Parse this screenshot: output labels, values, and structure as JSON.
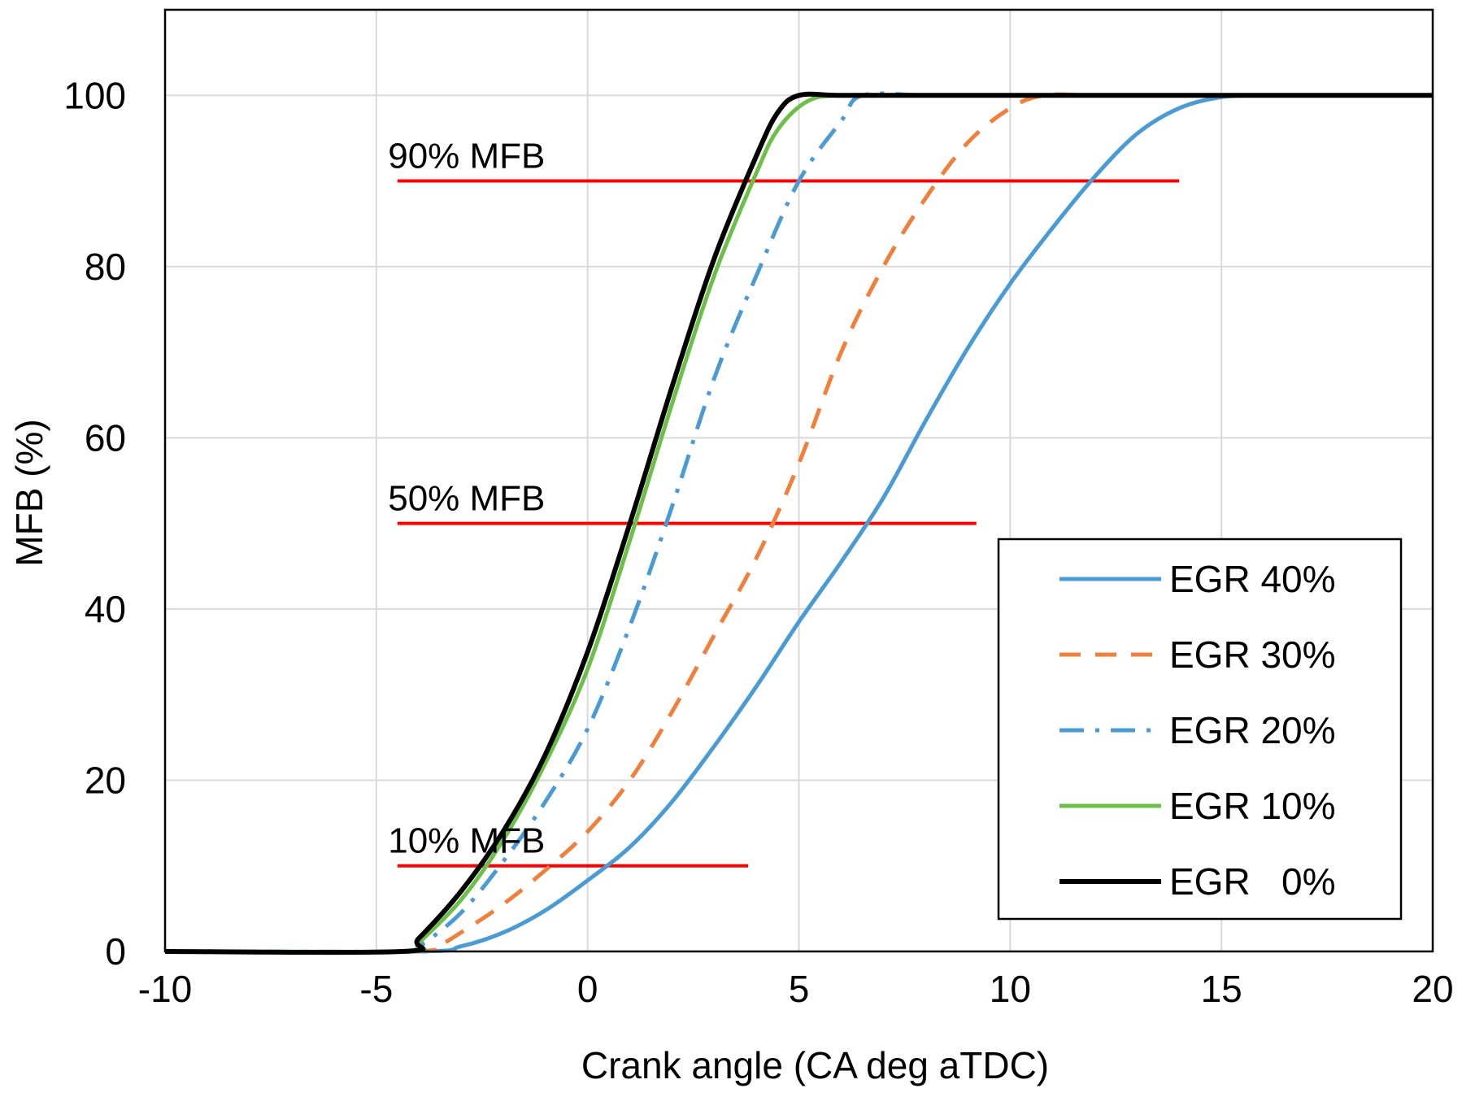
{
  "chart_data": {
    "type": "line",
    "title": "",
    "xlabel": "Crank angle  (CA deg aTDC)",
    "ylabel": "MFB  (%)",
    "xlim": [
      -10,
      20
    ],
    "ylim": [
      0,
      110
    ],
    "xticks": [
      -10,
      -5,
      0,
      5,
      10,
      15,
      20
    ],
    "yticks": [
      0,
      20,
      40,
      60,
      80,
      100
    ],
    "grid": true,
    "legend_position": "bottom-right",
    "series": [
      {
        "name": "EGR 40%",
        "color": "#4a9bd4",
        "dash": "solid",
        "x": [
          -10,
          -4,
          -3,
          -2,
          -1,
          0,
          1,
          2,
          3,
          4,
          5,
          6,
          7,
          8,
          9,
          10,
          11,
          12,
          13,
          14,
          15,
          16,
          17,
          18,
          19,
          20
        ],
        "y": [
          0,
          0,
          0.6,
          2.2,
          4.8,
          8.3,
          12.2,
          17.5,
          24,
          31,
          38.5,
          45.5,
          53,
          62,
          70.5,
          78,
          84.5,
          90.5,
          95.5,
          98.5,
          99.8,
          100,
          100,
          100,
          100,
          100
        ]
      },
      {
        "name": "EGR 30%",
        "color": "#f07f3c",
        "dash": "dashed",
        "x": [
          -10,
          -4.2,
          -3.5,
          -3,
          -2,
          -1,
          0,
          1,
          2,
          3,
          4,
          5,
          6,
          7,
          8,
          9,
          10,
          10.8,
          12,
          14,
          16,
          18,
          20
        ],
        "y": [
          0,
          0,
          0.8,
          2.2,
          5.5,
          9.5,
          14,
          20,
          28,
          37,
          46,
          57,
          70,
          80,
          88,
          94.5,
          98.5,
          100,
          100,
          100,
          100,
          100,
          100
        ]
      },
      {
        "name": "EGR 20%",
        "color": "#4a9bd4",
        "dash": "dashdot",
        "x": [
          -10,
          -4.3,
          -4,
          -3,
          -2,
          -1,
          0,
          1,
          2,
          3,
          4,
          5,
          6,
          6.5,
          8,
          10,
          12,
          14,
          16,
          18,
          20
        ],
        "y": [
          0,
          0,
          0.5,
          4.5,
          10.5,
          17.5,
          26,
          38,
          52,
          67,
          79,
          90,
          97,
          100,
          100,
          100,
          100,
          100,
          100,
          100,
          100
        ]
      },
      {
        "name": "EGR 10%",
        "color": "#6cc04a",
        "dash": "solid",
        "x": [
          -10,
          -4.3,
          -4,
          -3,
          -2,
          -1,
          0,
          1,
          2,
          3,
          4,
          4.5,
          5.2,
          6,
          8,
          10,
          12,
          14,
          16,
          18,
          20
        ],
        "y": [
          0,
          0,
          1,
          6,
          13,
          22,
          33,
          48,
          64,
          79,
          91,
          96,
          99.3,
          100,
          100,
          100,
          100,
          100,
          100,
          100,
          100
        ]
      },
      {
        "name": "EGR   0%",
        "color": "#000000",
        "dash": "solid",
        "x": [
          -10,
          -4.4,
          -4,
          -3,
          -2,
          -1,
          0,
          1,
          2,
          3,
          4,
          4.5,
          5,
          6,
          8,
          10,
          12,
          14,
          16,
          18,
          20
        ],
        "y": [
          0,
          0,
          1.5,
          7,
          14,
          23,
          35,
          50,
          66,
          81,
          93,
          98,
          100,
          100,
          100,
          100,
          100,
          100,
          100,
          100,
          100
        ]
      }
    ],
    "reference_lines": [
      {
        "label": "10% MFB",
        "y": 10,
        "x_start": -4.5,
        "x_end": 3.8,
        "color": "#ff0000"
      },
      {
        "label": "50% MFB",
        "y": 50,
        "x_start": -4.5,
        "x_end": 9.2,
        "color": "#ff0000"
      },
      {
        "label": "90% MFB",
        "y": 90,
        "x_start": -4.5,
        "x_end": 14,
        "color": "#ff0000"
      }
    ]
  }
}
